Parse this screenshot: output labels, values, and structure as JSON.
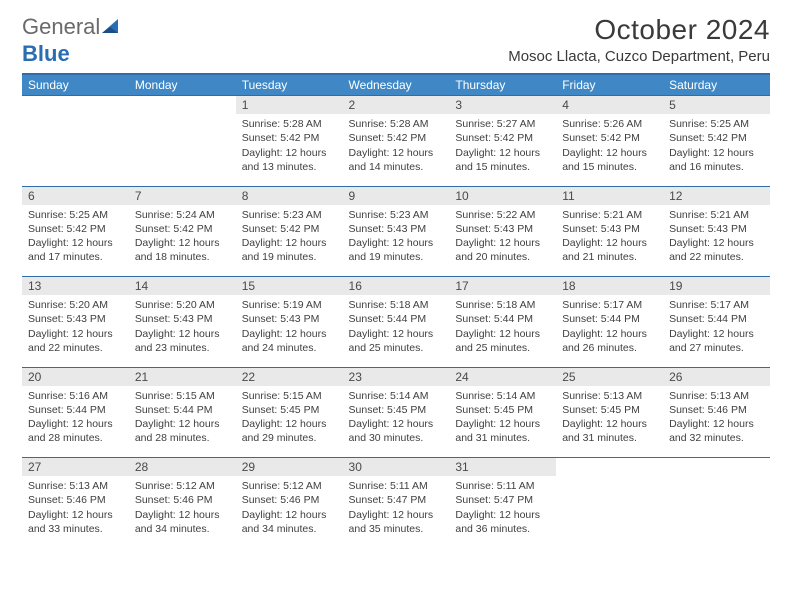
{
  "logo": {
    "text_general": "General",
    "text_blue": "Blue"
  },
  "header": {
    "month_title": "October 2024",
    "location": "Mosoc Llacta, Cuzco Department, Peru"
  },
  "colors": {
    "header_bg": "#3f88c5",
    "header_text": "#ffffff",
    "daynum_bg": "#e9e9e9",
    "rule": "#2f6ca8",
    "body_text": "#404040"
  },
  "day_headers": [
    "Sunday",
    "Monday",
    "Tuesday",
    "Wednesday",
    "Thursday",
    "Friday",
    "Saturday"
  ],
  "weeks": [
    [
      null,
      null,
      {
        "n": "1",
        "sunrise": "5:28 AM",
        "sunset": "5:42 PM",
        "dh": "12",
        "dm": "13"
      },
      {
        "n": "2",
        "sunrise": "5:28 AM",
        "sunset": "5:42 PM",
        "dh": "12",
        "dm": "14"
      },
      {
        "n": "3",
        "sunrise": "5:27 AM",
        "sunset": "5:42 PM",
        "dh": "12",
        "dm": "15"
      },
      {
        "n": "4",
        "sunrise": "5:26 AM",
        "sunset": "5:42 PM",
        "dh": "12",
        "dm": "15"
      },
      {
        "n": "5",
        "sunrise": "5:25 AM",
        "sunset": "5:42 PM",
        "dh": "12",
        "dm": "16"
      }
    ],
    [
      {
        "n": "6",
        "sunrise": "5:25 AM",
        "sunset": "5:42 PM",
        "dh": "12",
        "dm": "17"
      },
      {
        "n": "7",
        "sunrise": "5:24 AM",
        "sunset": "5:42 PM",
        "dh": "12",
        "dm": "18"
      },
      {
        "n": "8",
        "sunrise": "5:23 AM",
        "sunset": "5:42 PM",
        "dh": "12",
        "dm": "19"
      },
      {
        "n": "9",
        "sunrise": "5:23 AM",
        "sunset": "5:43 PM",
        "dh": "12",
        "dm": "19"
      },
      {
        "n": "10",
        "sunrise": "5:22 AM",
        "sunset": "5:43 PM",
        "dh": "12",
        "dm": "20"
      },
      {
        "n": "11",
        "sunrise": "5:21 AM",
        "sunset": "5:43 PM",
        "dh": "12",
        "dm": "21"
      },
      {
        "n": "12",
        "sunrise": "5:21 AM",
        "sunset": "5:43 PM",
        "dh": "12",
        "dm": "22"
      }
    ],
    [
      {
        "n": "13",
        "sunrise": "5:20 AM",
        "sunset": "5:43 PM",
        "dh": "12",
        "dm": "22"
      },
      {
        "n": "14",
        "sunrise": "5:20 AM",
        "sunset": "5:43 PM",
        "dh": "12",
        "dm": "23"
      },
      {
        "n": "15",
        "sunrise": "5:19 AM",
        "sunset": "5:43 PM",
        "dh": "12",
        "dm": "24"
      },
      {
        "n": "16",
        "sunrise": "5:18 AM",
        "sunset": "5:44 PM",
        "dh": "12",
        "dm": "25"
      },
      {
        "n": "17",
        "sunrise": "5:18 AM",
        "sunset": "5:44 PM",
        "dh": "12",
        "dm": "25"
      },
      {
        "n": "18",
        "sunrise": "5:17 AM",
        "sunset": "5:44 PM",
        "dh": "12",
        "dm": "26"
      },
      {
        "n": "19",
        "sunrise": "5:17 AM",
        "sunset": "5:44 PM",
        "dh": "12",
        "dm": "27"
      }
    ],
    [
      {
        "n": "20",
        "sunrise": "5:16 AM",
        "sunset": "5:44 PM",
        "dh": "12",
        "dm": "28"
      },
      {
        "n": "21",
        "sunrise": "5:15 AM",
        "sunset": "5:44 PM",
        "dh": "12",
        "dm": "28"
      },
      {
        "n": "22",
        "sunrise": "5:15 AM",
        "sunset": "5:45 PM",
        "dh": "12",
        "dm": "29"
      },
      {
        "n": "23",
        "sunrise": "5:14 AM",
        "sunset": "5:45 PM",
        "dh": "12",
        "dm": "30"
      },
      {
        "n": "24",
        "sunrise": "5:14 AM",
        "sunset": "5:45 PM",
        "dh": "12",
        "dm": "31"
      },
      {
        "n": "25",
        "sunrise": "5:13 AM",
        "sunset": "5:45 PM",
        "dh": "12",
        "dm": "31"
      },
      {
        "n": "26",
        "sunrise": "5:13 AM",
        "sunset": "5:46 PM",
        "dh": "12",
        "dm": "32"
      }
    ],
    [
      {
        "n": "27",
        "sunrise": "5:13 AM",
        "sunset": "5:46 PM",
        "dh": "12",
        "dm": "33"
      },
      {
        "n": "28",
        "sunrise": "5:12 AM",
        "sunset": "5:46 PM",
        "dh": "12",
        "dm": "34"
      },
      {
        "n": "29",
        "sunrise": "5:12 AM",
        "sunset": "5:46 PM",
        "dh": "12",
        "dm": "34"
      },
      {
        "n": "30",
        "sunrise": "5:11 AM",
        "sunset": "5:47 PM",
        "dh": "12",
        "dm": "35"
      },
      {
        "n": "31",
        "sunrise": "5:11 AM",
        "sunset": "5:47 PM",
        "dh": "12",
        "dm": "36"
      },
      null,
      null
    ]
  ]
}
